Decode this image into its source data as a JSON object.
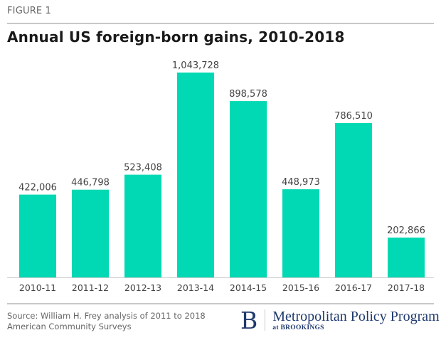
{
  "figure_label": "FIGURE 1",
  "source": "Source: William H. Frey analysis of 2011 to 2018 American Community Surveys",
  "logo": {
    "icon": "brookings-b-logo-icon",
    "letter": "B",
    "name": "Metropolitan Policy Program",
    "sub": "at BROOKINGS"
  },
  "colors": {
    "bar": "#00D9B3",
    "axis": "#cccccc",
    "text": "#444444"
  },
  "chart_data": {
    "type": "bar",
    "title": "Annual US foreign-born gains, 2010-2018",
    "xlabel": "",
    "ylabel": "",
    "grid": false,
    "legend": "none",
    "ylim": [
      0,
      1043728
    ],
    "categories": [
      "2010-11",
      "2011-12",
      "2012-13",
      "2013-14",
      "2014-15",
      "2015-16",
      "2016-17",
      "2017-18"
    ],
    "values": [
      422006,
      446798,
      523408,
      1043728,
      898578,
      448973,
      786510,
      202866
    ],
    "data_labels": [
      "422,006",
      "446,798",
      "523,408",
      "1,043,728",
      "898,578",
      "448,973",
      "786,510",
      "202,866"
    ]
  }
}
